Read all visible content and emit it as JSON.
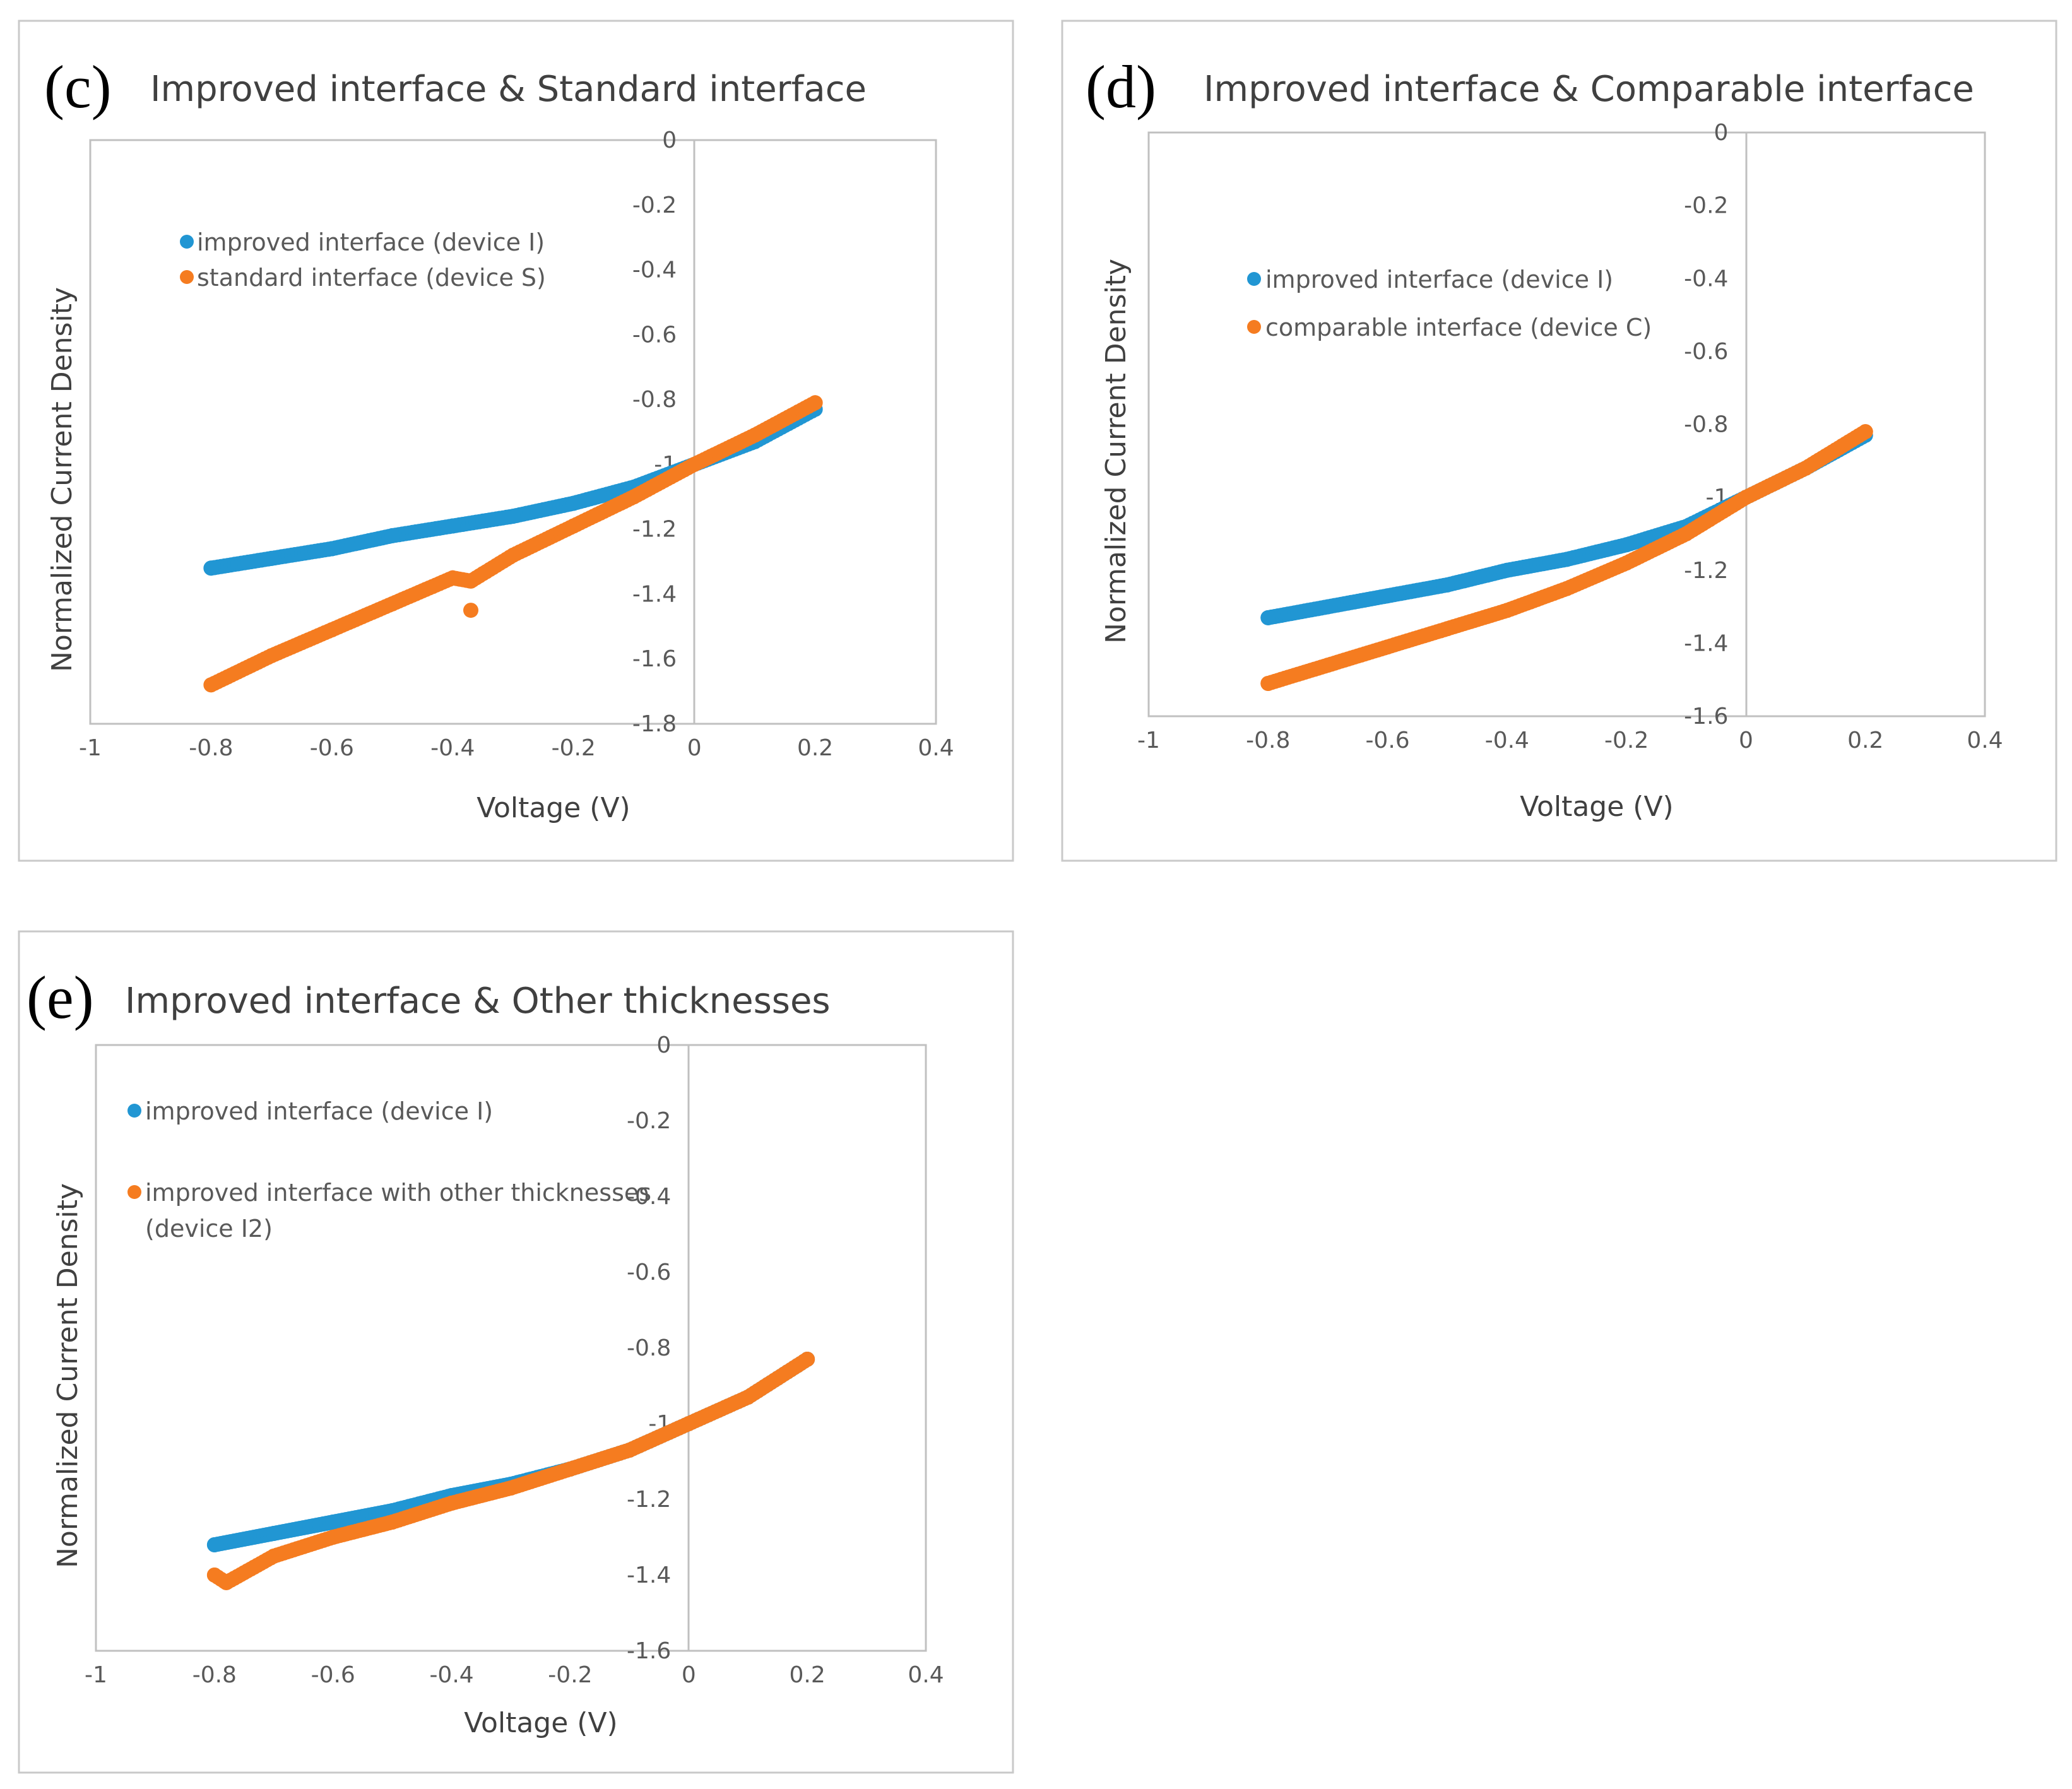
{
  "colors": {
    "improved": "#2196d3",
    "orange": "#f57c20"
  },
  "panels": [
    {
      "letter": "(c)",
      "title": "Improved interface & Standard interface",
      "xlabel": "Voltage (V)",
      "ylabel": "Normalized Current Density",
      "xticks": [
        "-1",
        "-0.8",
        "-0.6",
        "-0.4",
        "-0.2",
        "0",
        "0.2",
        "0.4"
      ],
      "yticks": [
        "0",
        "-0.2",
        "-0.4",
        "-0.6",
        "-0.8",
        "-1",
        "-1.2",
        "-1.4",
        "-1.6",
        "-1.8"
      ],
      "legend": [
        {
          "lines": [
            "improved interface (device I)"
          ]
        },
        {
          "lines": [
            "standard interface (device S)"
          ]
        }
      ]
    },
    {
      "letter": "(d)",
      "title": "Improved interface & Comparable interface",
      "xlabel": "Voltage (V)",
      "ylabel": "Normalized Current Density",
      "xticks": [
        "-1",
        "-0.8",
        "-0.6",
        "-0.4",
        "-0.2",
        "0",
        "0.2",
        "0.4"
      ],
      "yticks": [
        "0",
        "-0.2",
        "-0.4",
        "-0.6",
        "-0.8",
        "-1",
        "-1.2",
        "-1.4",
        "-1.6"
      ],
      "legend": [
        {
          "lines": [
            "improved interface (device I)"
          ]
        },
        {
          "lines": [
            "comparable interface (device C)"
          ]
        }
      ]
    },
    {
      "letter": "(e)",
      "title": "Improved interface & Other thicknesses",
      "xlabel": "Voltage (V)",
      "ylabel": "Normalized Current Density",
      "xticks": [
        "-1",
        "-0.8",
        "-0.6",
        "-0.4",
        "-0.2",
        "0",
        "0.2",
        "0.4"
      ],
      "yticks": [
        "0",
        "-0.2",
        "-0.4",
        "-0.6",
        "-0.8",
        "-1",
        "-1.2",
        "-1.4",
        "-1.6"
      ],
      "legend": [
        {
          "lines": [
            "improved interface (device I)"
          ]
        },
        {
          "lines": [
            "improved interface with other thicknesses",
            "(device I2)"
          ]
        }
      ]
    }
  ],
  "chart_data": [
    {
      "type": "scatter",
      "title": "Improved interface & Standard interface",
      "xlabel": "Voltage (V)",
      "ylabel": "Normalized Current Density",
      "xlim": [
        -1,
        0.4
      ],
      "ylim": [
        -1.8,
        0
      ],
      "grid": false,
      "legend_position": "top-left",
      "series": [
        {
          "name": "improved interface (device I)",
          "color": "#2196d3",
          "x": [
            -0.8,
            -0.7,
            -0.6,
            -0.5,
            -0.4,
            -0.3,
            -0.2,
            -0.1,
            0,
            0.1,
            0.2
          ],
          "y": [
            -1.32,
            -1.29,
            -1.26,
            -1.22,
            -1.19,
            -1.16,
            -1.12,
            -1.07,
            -1.0,
            -0.93,
            -0.83
          ]
        },
        {
          "name": "standard interface (device S)",
          "color": "#f57c20",
          "x": [
            -0.8,
            -0.7,
            -0.6,
            -0.5,
            -0.4,
            -0.37,
            -0.37,
            -0.3,
            -0.2,
            -0.1,
            0,
            0.1,
            0.2
          ],
          "y": [
            -1.68,
            -1.59,
            -1.51,
            -1.43,
            -1.35,
            -1.36,
            -1.45,
            -1.28,
            -1.19,
            -1.1,
            -1.0,
            -0.91,
            -0.81
          ]
        }
      ]
    },
    {
      "type": "scatter",
      "title": "Improved interface & Comparable interface",
      "xlabel": "Voltage (V)",
      "ylabel": "Normalized Current Density",
      "xlim": [
        -1,
        0.4
      ],
      "ylim": [
        -1.6,
        0
      ],
      "grid": false,
      "legend_position": "top-left",
      "series": [
        {
          "name": "improved interface (device I)",
          "color": "#2196d3",
          "x": [
            -0.8,
            -0.7,
            -0.6,
            -0.5,
            -0.4,
            -0.3,
            -0.2,
            -0.1,
            0,
            0.1,
            0.2
          ],
          "y": [
            -1.33,
            -1.3,
            -1.27,
            -1.24,
            -1.2,
            -1.17,
            -1.13,
            -1.08,
            -1.0,
            -0.92,
            -0.83
          ]
        },
        {
          "name": "comparable interface (device C)",
          "color": "#f57c20",
          "x": [
            -0.8,
            -0.7,
            -0.6,
            -0.5,
            -0.4,
            -0.3,
            -0.2,
            -0.1,
            0,
            0.1,
            0.2
          ],
          "y": [
            -1.51,
            -1.46,
            -1.41,
            -1.36,
            -1.31,
            -1.25,
            -1.18,
            -1.1,
            -1.0,
            -0.92,
            -0.82
          ]
        }
      ]
    },
    {
      "type": "scatter",
      "title": "Improved interface & Other thicknesses",
      "xlabel": "Voltage (V)",
      "ylabel": "Normalized Current Density",
      "xlim": [
        -1,
        0.4
      ],
      "ylim": [
        -1.6,
        0
      ],
      "grid": false,
      "legend_position": "top-left",
      "series": [
        {
          "name": "improved interface (device I)",
          "color": "#2196d3",
          "x": [
            -0.8,
            -0.7,
            -0.6,
            -0.5,
            -0.4,
            -0.3,
            -0.2,
            -0.1,
            0,
            0.1,
            0.2
          ],
          "y": [
            -1.32,
            -1.29,
            -1.26,
            -1.23,
            -1.19,
            -1.16,
            -1.12,
            -1.07,
            -1.0,
            -0.93,
            -0.83
          ]
        },
        {
          "name": "improved interface with other thicknesses (device I2)",
          "color": "#f57c20",
          "x": [
            -0.8,
            -0.78,
            -0.7,
            -0.6,
            -0.5,
            -0.4,
            -0.3,
            -0.2,
            -0.1,
            0,
            0.1,
            0.2
          ],
          "y": [
            -1.4,
            -1.42,
            -1.35,
            -1.3,
            -1.26,
            -1.21,
            -1.17,
            -1.12,
            -1.07,
            -1.0,
            -0.93,
            -0.83
          ]
        }
      ]
    }
  ]
}
